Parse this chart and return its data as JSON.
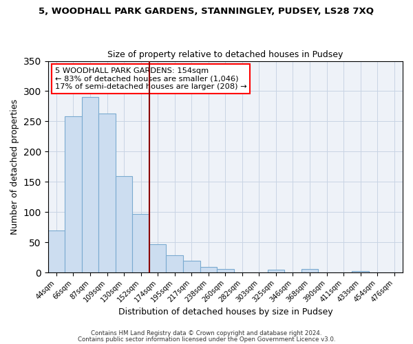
{
  "title": "5, WOODHALL PARK GARDENS, STANNINGLEY, PUDSEY, LS28 7XQ",
  "subtitle": "Size of property relative to detached houses in Pudsey",
  "xlabel": "Distribution of detached houses by size in Pudsey",
  "ylabel": "Number of detached properties",
  "bar_color": "#ccddf0",
  "bar_edge_color": "#7aaad0",
  "vline_color": "#8b0000",
  "annotation_line1": "5 WOODHALL PARK GARDENS: 154sqm",
  "annotation_line2": "← 83% of detached houses are smaller (1,046)",
  "annotation_line3": "17% of semi-detached houses are larger (208) →",
  "annotation_box_color": "white",
  "annotation_box_edge_color": "red",
  "categories": [
    "44sqm",
    "66sqm",
    "87sqm",
    "109sqm",
    "130sqm",
    "152sqm",
    "174sqm",
    "195sqm",
    "217sqm",
    "238sqm",
    "260sqm",
    "282sqm",
    "303sqm",
    "325sqm",
    "346sqm",
    "368sqm",
    "390sqm",
    "411sqm",
    "433sqm",
    "454sqm",
    "476sqm"
  ],
  "values": [
    70,
    258,
    290,
    263,
    160,
    97,
    47,
    29,
    19,
    9,
    6,
    0,
    0,
    5,
    0,
    6,
    0,
    0,
    2,
    0,
    0
  ],
  "ylim": [
    0,
    350
  ],
  "yticks": [
    0,
    50,
    100,
    150,
    200,
    250,
    300,
    350
  ],
  "footer1": "Contains HM Land Registry data © Crown copyright and database right 2024.",
  "footer2": "Contains public sector information licensed under the Open Government Licence v3.0.",
  "bg_color": "#eef2f8"
}
